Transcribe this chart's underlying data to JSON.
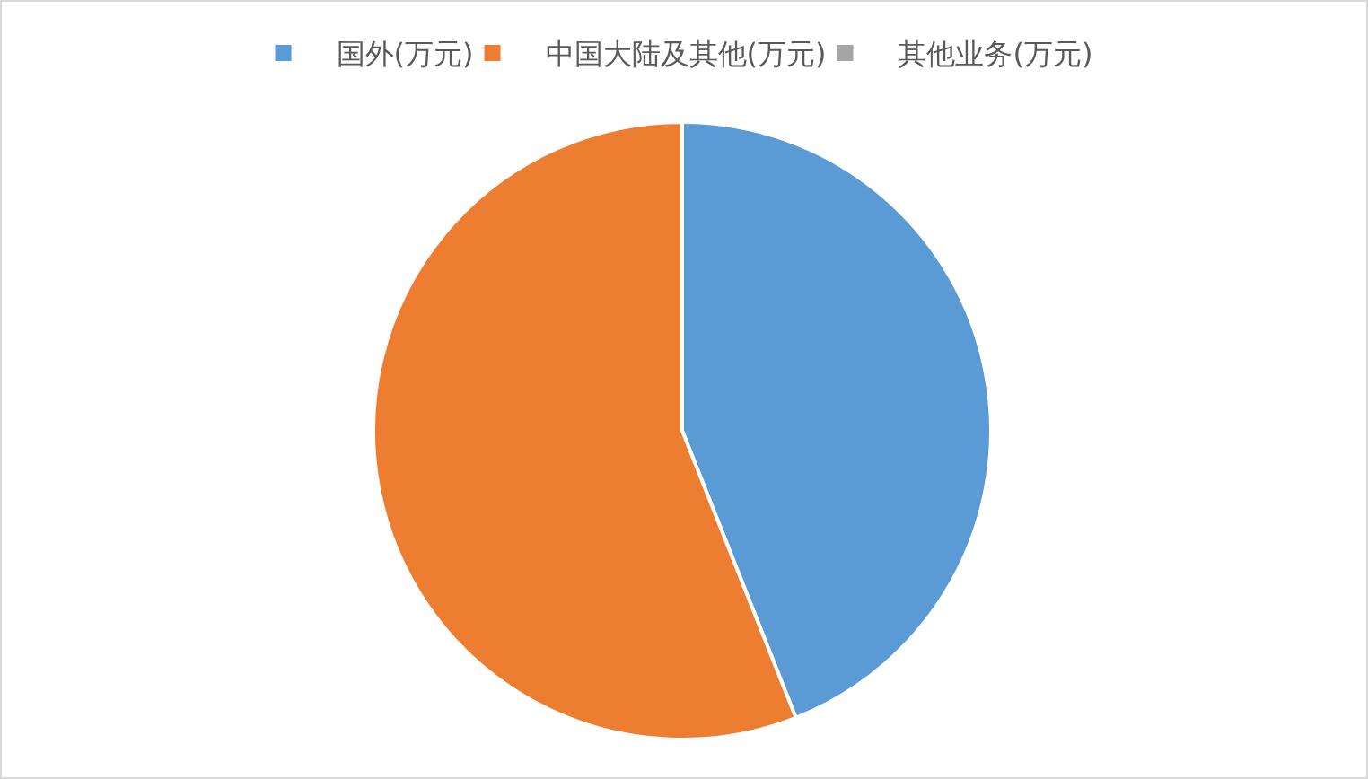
{
  "chart_data": {
    "type": "pie",
    "categories": [
      "国外(万元)",
      "中国大陆及其他(万元)",
      "其他业务(万元)"
    ],
    "values": [
      44.0,
      56.0,
      0
    ],
    "colors": [
      "#5b9bd5",
      "#ed7d31",
      "#a5a5a5"
    ],
    "legend": "top"
  }
}
